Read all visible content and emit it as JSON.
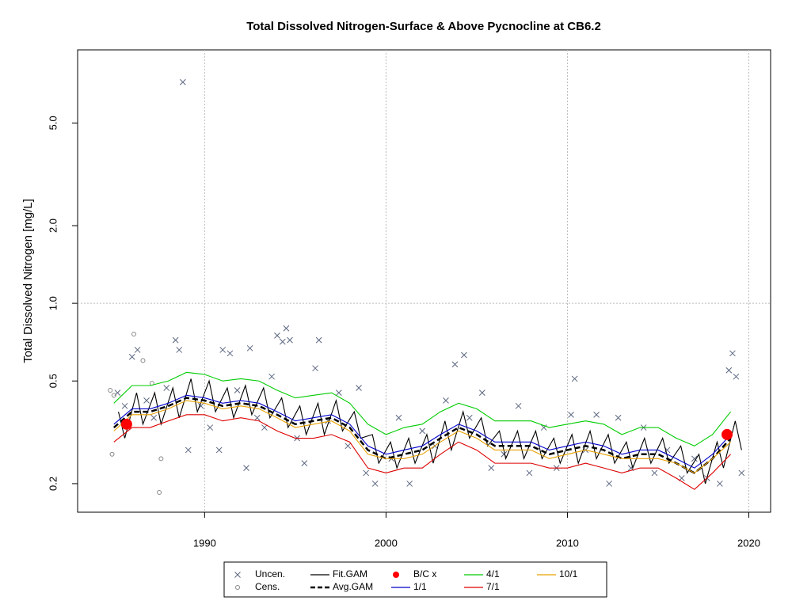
{
  "chart_data": {
    "type": "line",
    "title": "Total Dissolved Nitrogen-Surface & Above Pycnocline at CB6.2",
    "y_label": "Total Dissolved Nitrogen [mg/L]",
    "log_y": true,
    "xlim": [
      1983.0,
      2021.2
    ],
    "ylim": [
      0.155,
      9.6
    ],
    "xticks": [
      1990,
      2000,
      2010,
      2020
    ],
    "yticks": [
      0.2,
      0.5,
      {
        "value": 1,
        "label": "1.0"
      },
      {
        "value": 2,
        "label": "2.0"
      },
      {
        "value": 5,
        "label": "5.0"
      }
    ],
    "grid_x": true,
    "grid_y": [
      1
    ],
    "x": [
      1985,
      1986,
      1987,
      1988,
      1989,
      1990,
      1991,
      1992,
      1993,
      1994,
      1995,
      1996,
      1997,
      1998,
      1999,
      2000,
      2001,
      2002,
      2003,
      2004,
      2005,
      2006,
      2007,
      2008,
      2009,
      2010,
      2011,
      2012,
      2013,
      2014,
      2015,
      2016,
      2017,
      2018,
      2019
    ],
    "series": [
      {
        "name": "Uncen.",
        "color": "#5b6680",
        "marker": "x",
        "x": [
          1985.2,
          1985.6,
          1986.0,
          1986.3,
          1986.8,
          1987.2,
          1987.9,
          1988.4,
          1988.6,
          1988.8,
          1989.1,
          1989.8,
          1990.3,
          1990.8,
          1991.0,
          1991.4,
          1991.8,
          1992.3,
          1992.5,
          1992.9,
          1993.3,
          1993.7,
          1994.0,
          1994.3,
          1994.5,
          1994.7,
          1995.1,
          1995.5,
          1996.1,
          1996.3,
          1996.8,
          1997.4,
          1997.9,
          1998.5,
          1998.9,
          1999.4,
          2000.3,
          2000.7,
          2001.3,
          2002.0,
          2002.7,
          2003.3,
          2003.8,
          2004.3,
          2004.6,
          2005.3,
          2005.8,
          2006.5,
          2007.3,
          2007.9,
          2008.7,
          2009.4,
          2010.2,
          2010.4,
          2011.0,
          2011.6,
          2012.3,
          2012.8,
          2013.5,
          2014.2,
          2014.8,
          2015.5,
          2016.3,
          2017.0,
          2017.7,
          2018.4,
          2018.9,
          2019.1,
          2019.3,
          2019.6
        ],
        "values": [
          0.45,
          0.4,
          0.62,
          0.66,
          0.42,
          0.36,
          0.47,
          0.72,
          0.66,
          7.2,
          0.27,
          0.4,
          0.33,
          0.27,
          0.66,
          0.64,
          0.46,
          0.23,
          0.67,
          0.36,
          0.33,
          0.52,
          0.75,
          0.71,
          0.8,
          0.72,
          0.3,
          0.24,
          0.56,
          0.72,
          0.35,
          0.45,
          0.28,
          0.47,
          0.22,
          0.2,
          0.25,
          0.36,
          0.2,
          0.32,
          0.28,
          0.42,
          0.58,
          0.63,
          0.36,
          0.45,
          0.23,
          0.26,
          0.4,
          0.22,
          0.33,
          0.23,
          0.37,
          0.51,
          0.27,
          0.37,
          0.2,
          0.36,
          0.23,
          0.33,
          0.22,
          0.27,
          0.21,
          0.25,
          0.21,
          0.2,
          0.55,
          0.64,
          0.52,
          0.22
        ]
      },
      {
        "name": "Cens.",
        "color": "#888888",
        "marker": "circle",
        "x": [
          1984.8,
          1985.0,
          1984.9,
          1986.1,
          1986.6,
          1987.1,
          1987.5,
          1987.6
        ],
        "values": [
          0.46,
          0.44,
          0.26,
          0.76,
          0.6,
          0.49,
          0.185,
          0.25
        ]
      },
      {
        "name": "Fit.GAM",
        "color": "#000000",
        "marker": "line",
        "x": [
          1985.25,
          1985.6,
          1986.25,
          1986.6,
          1987.25,
          1987.6,
          1988.25,
          1988.6,
          1989.25,
          1989.6,
          1990.25,
          1990.6,
          1991.25,
          1991.6,
          1992.25,
          1992.6,
          1993.25,
          1993.6,
          1994.25,
          1994.6,
          1995.25,
          1995.6,
          1996.25,
          1996.6,
          1997.25,
          1997.6,
          1998.25,
          1998.6,
          1999.25,
          1999.6,
          2000.25,
          2000.6,
          2001.25,
          2001.6,
          2002.25,
          2002.6,
          2003.25,
          2003.6,
          2004.25,
          2004.6,
          2005.25,
          2005.6,
          2006.25,
          2006.6,
          2007.25,
          2007.6,
          2008.25,
          2008.6,
          2009.25,
          2009.6,
          2010.25,
          2010.6,
          2011.25,
          2011.6,
          2012.25,
          2012.6,
          2013.25,
          2013.6,
          2014.25,
          2014.6,
          2015.25,
          2015.6,
          2016.25,
          2016.6,
          2017.25,
          2017.6,
          2018.25,
          2018.6,
          2019.25,
          2019.6
        ],
        "values": [
          0.38,
          0.3,
          0.45,
          0.34,
          0.45,
          0.34,
          0.47,
          0.36,
          0.51,
          0.38,
          0.5,
          0.38,
          0.47,
          0.36,
          0.48,
          0.37,
          0.47,
          0.36,
          0.43,
          0.33,
          0.4,
          0.31,
          0.41,
          0.31,
          0.42,
          0.32,
          0.38,
          0.3,
          0.31,
          0.24,
          0.29,
          0.23,
          0.3,
          0.24,
          0.31,
          0.24,
          0.35,
          0.27,
          0.38,
          0.3,
          0.36,
          0.28,
          0.32,
          0.25,
          0.32,
          0.25,
          0.32,
          0.25,
          0.3,
          0.24,
          0.31,
          0.24,
          0.32,
          0.25,
          0.31,
          0.24,
          0.29,
          0.23,
          0.3,
          0.24,
          0.3,
          0.24,
          0.28,
          0.22,
          0.26,
          0.2,
          0.29,
          0.23,
          0.35,
          0.27
        ]
      },
      {
        "name": "Avg.GAM",
        "color": "#000000",
        "marker": "line",
        "dash": true,
        "values": [
          0.33,
          0.38,
          0.38,
          0.4,
          0.43,
          0.42,
          0.4,
          0.41,
          0.4,
          0.37,
          0.34,
          0.35,
          0.36,
          0.33,
          0.27,
          0.25,
          0.26,
          0.27,
          0.3,
          0.33,
          0.31,
          0.28,
          0.28,
          0.28,
          0.26,
          0.27,
          0.28,
          0.27,
          0.25,
          0.26,
          0.26,
          0.24,
          0.22,
          0.25,
          0.3
        ]
      },
      {
        "name": "B/C x",
        "color": "#ff0000",
        "marker": "dot",
        "x": [
          1985.7,
          2018.8
        ],
        "values": [
          0.34,
          0.31
        ]
      },
      {
        "name": "1/1",
        "color": "#0000cc",
        "marker": "line",
        "values": [
          0.34,
          0.39,
          0.39,
          0.41,
          0.44,
          0.43,
          0.41,
          0.42,
          0.41,
          0.38,
          0.35,
          0.36,
          0.37,
          0.34,
          0.28,
          0.26,
          0.27,
          0.28,
          0.31,
          0.34,
          0.32,
          0.29,
          0.29,
          0.29,
          0.27,
          0.28,
          0.29,
          0.28,
          0.26,
          0.27,
          0.27,
          0.25,
          0.23,
          0.26,
          0.31
        ]
      },
      {
        "name": "4/1",
        "color": "#00cc00",
        "marker": "line",
        "values": [
          0.41,
          0.48,
          0.48,
          0.5,
          0.54,
          0.53,
          0.5,
          0.51,
          0.5,
          0.46,
          0.43,
          0.44,
          0.45,
          0.41,
          0.34,
          0.31,
          0.33,
          0.34,
          0.38,
          0.41,
          0.39,
          0.35,
          0.35,
          0.35,
          0.33,
          0.34,
          0.35,
          0.34,
          0.31,
          0.33,
          0.33,
          0.3,
          0.28,
          0.31,
          0.38
        ]
      },
      {
        "name": "7/1",
        "color": "#dd0000",
        "marker": "line",
        "values": [
          0.29,
          0.33,
          0.33,
          0.35,
          0.37,
          0.37,
          0.35,
          0.36,
          0.35,
          0.32,
          0.3,
          0.3,
          0.31,
          0.29,
          0.23,
          0.22,
          0.23,
          0.23,
          0.26,
          0.29,
          0.27,
          0.24,
          0.24,
          0.24,
          0.23,
          0.23,
          0.24,
          0.23,
          0.22,
          0.23,
          0.23,
          0.21,
          0.19,
          0.22,
          0.26
        ]
      },
      {
        "name": "10/1",
        "color": "#e8a000",
        "marker": "line",
        "values": [
          0.32,
          0.37,
          0.37,
          0.39,
          0.42,
          0.41,
          0.39,
          0.4,
          0.39,
          0.36,
          0.33,
          0.34,
          0.35,
          0.32,
          0.26,
          0.25,
          0.25,
          0.26,
          0.29,
          0.32,
          0.3,
          0.27,
          0.27,
          0.27,
          0.25,
          0.26,
          0.27,
          0.26,
          0.25,
          0.25,
          0.25,
          0.24,
          0.22,
          0.25,
          0.29
        ]
      }
    ]
  }
}
